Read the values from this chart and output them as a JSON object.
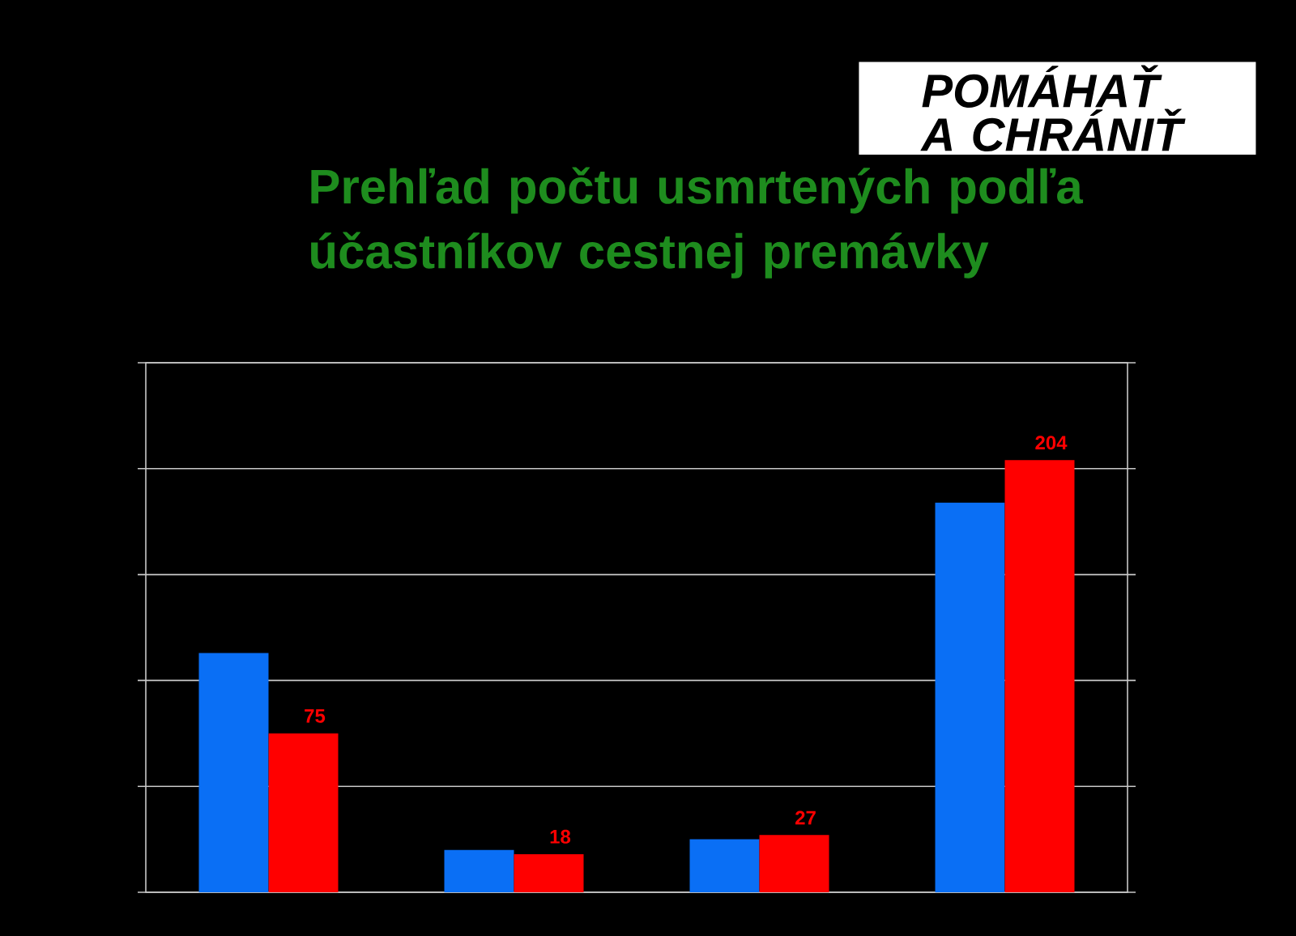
{
  "chart_data": {
    "type": "bar",
    "title": "Prehľad počtu usmrtených podľa účastníkov cestnej premávky",
    "categories": [
      null,
      null,
      null,
      null
    ],
    "series": [
      {
        "color": "#0a6ff5",
        "values": [
          113,
          20,
          25,
          184
        ]
      },
      {
        "color": "#ff0000",
        "values": [
          75,
          18,
          27,
          204
        ],
        "value_labels": [
          "75",
          "18",
          "27",
          "204"
        ]
      }
    ],
    "ylim": [
      0,
      250
    ],
    "yticks": [
      {
        "value": 0,
        "label": null
      },
      {
        "value": 50,
        "label": null
      },
      {
        "value": 100,
        "label": null
      },
      {
        "value": 150,
        "label": null
      },
      {
        "value": 200,
        "label": null
      },
      {
        "value": 250,
        "label": null
      }
    ],
    "grid": "y",
    "annotations": [
      "POMÁHAŤ A CHRÁNIŤ"
    ]
  }
}
